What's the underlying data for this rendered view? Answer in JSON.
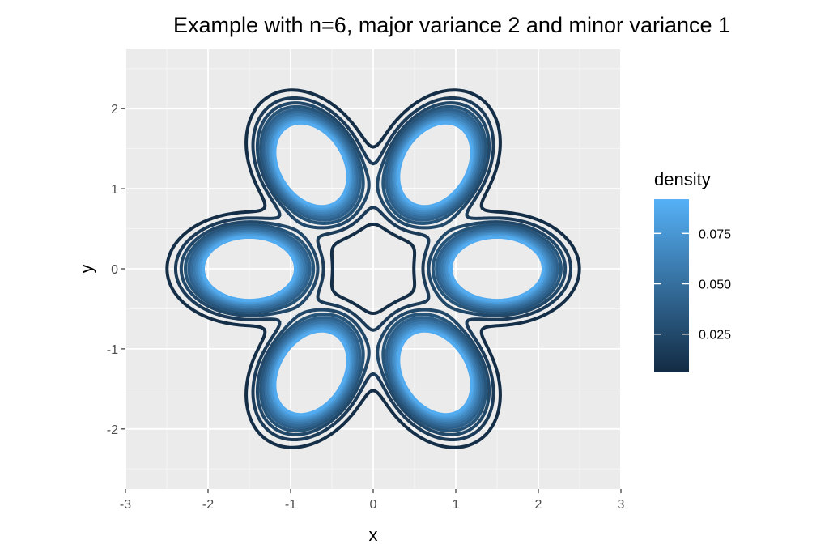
{
  "chart_data": {
    "type": "contour",
    "title": "Example with n=6, major variance 2 and minor variance 1",
    "xlabel": "x",
    "ylabel": "y",
    "xlim": [
      -3.0,
      3.0
    ],
    "ylim": [
      -2.75,
      2.75
    ],
    "x_ticks": [
      -3,
      -2,
      -1,
      0,
      1,
      2,
      3
    ],
    "y_ticks": [
      -2,
      -1,
      0,
      1,
      2
    ],
    "grid": true,
    "n_components": 6,
    "component_radius": 1.5,
    "major_variance": 2,
    "minor_variance": 1,
    "contour_levels": [
      0.008,
      0.016,
      0.024,
      0.032,
      0.04,
      0.048,
      0.056,
      0.064,
      0.072,
      0.08,
      0.088
    ],
    "legend": {
      "title": "density",
      "position": "right",
      "range": [
        0.006,
        0.092
      ],
      "ticks": [
        0.025,
        0.05,
        0.075
      ],
      "tick_labels": [
        "0.025",
        "0.050",
        "0.075"
      ],
      "color_low": "#132B43",
      "color_high": "#56B1F7"
    }
  }
}
